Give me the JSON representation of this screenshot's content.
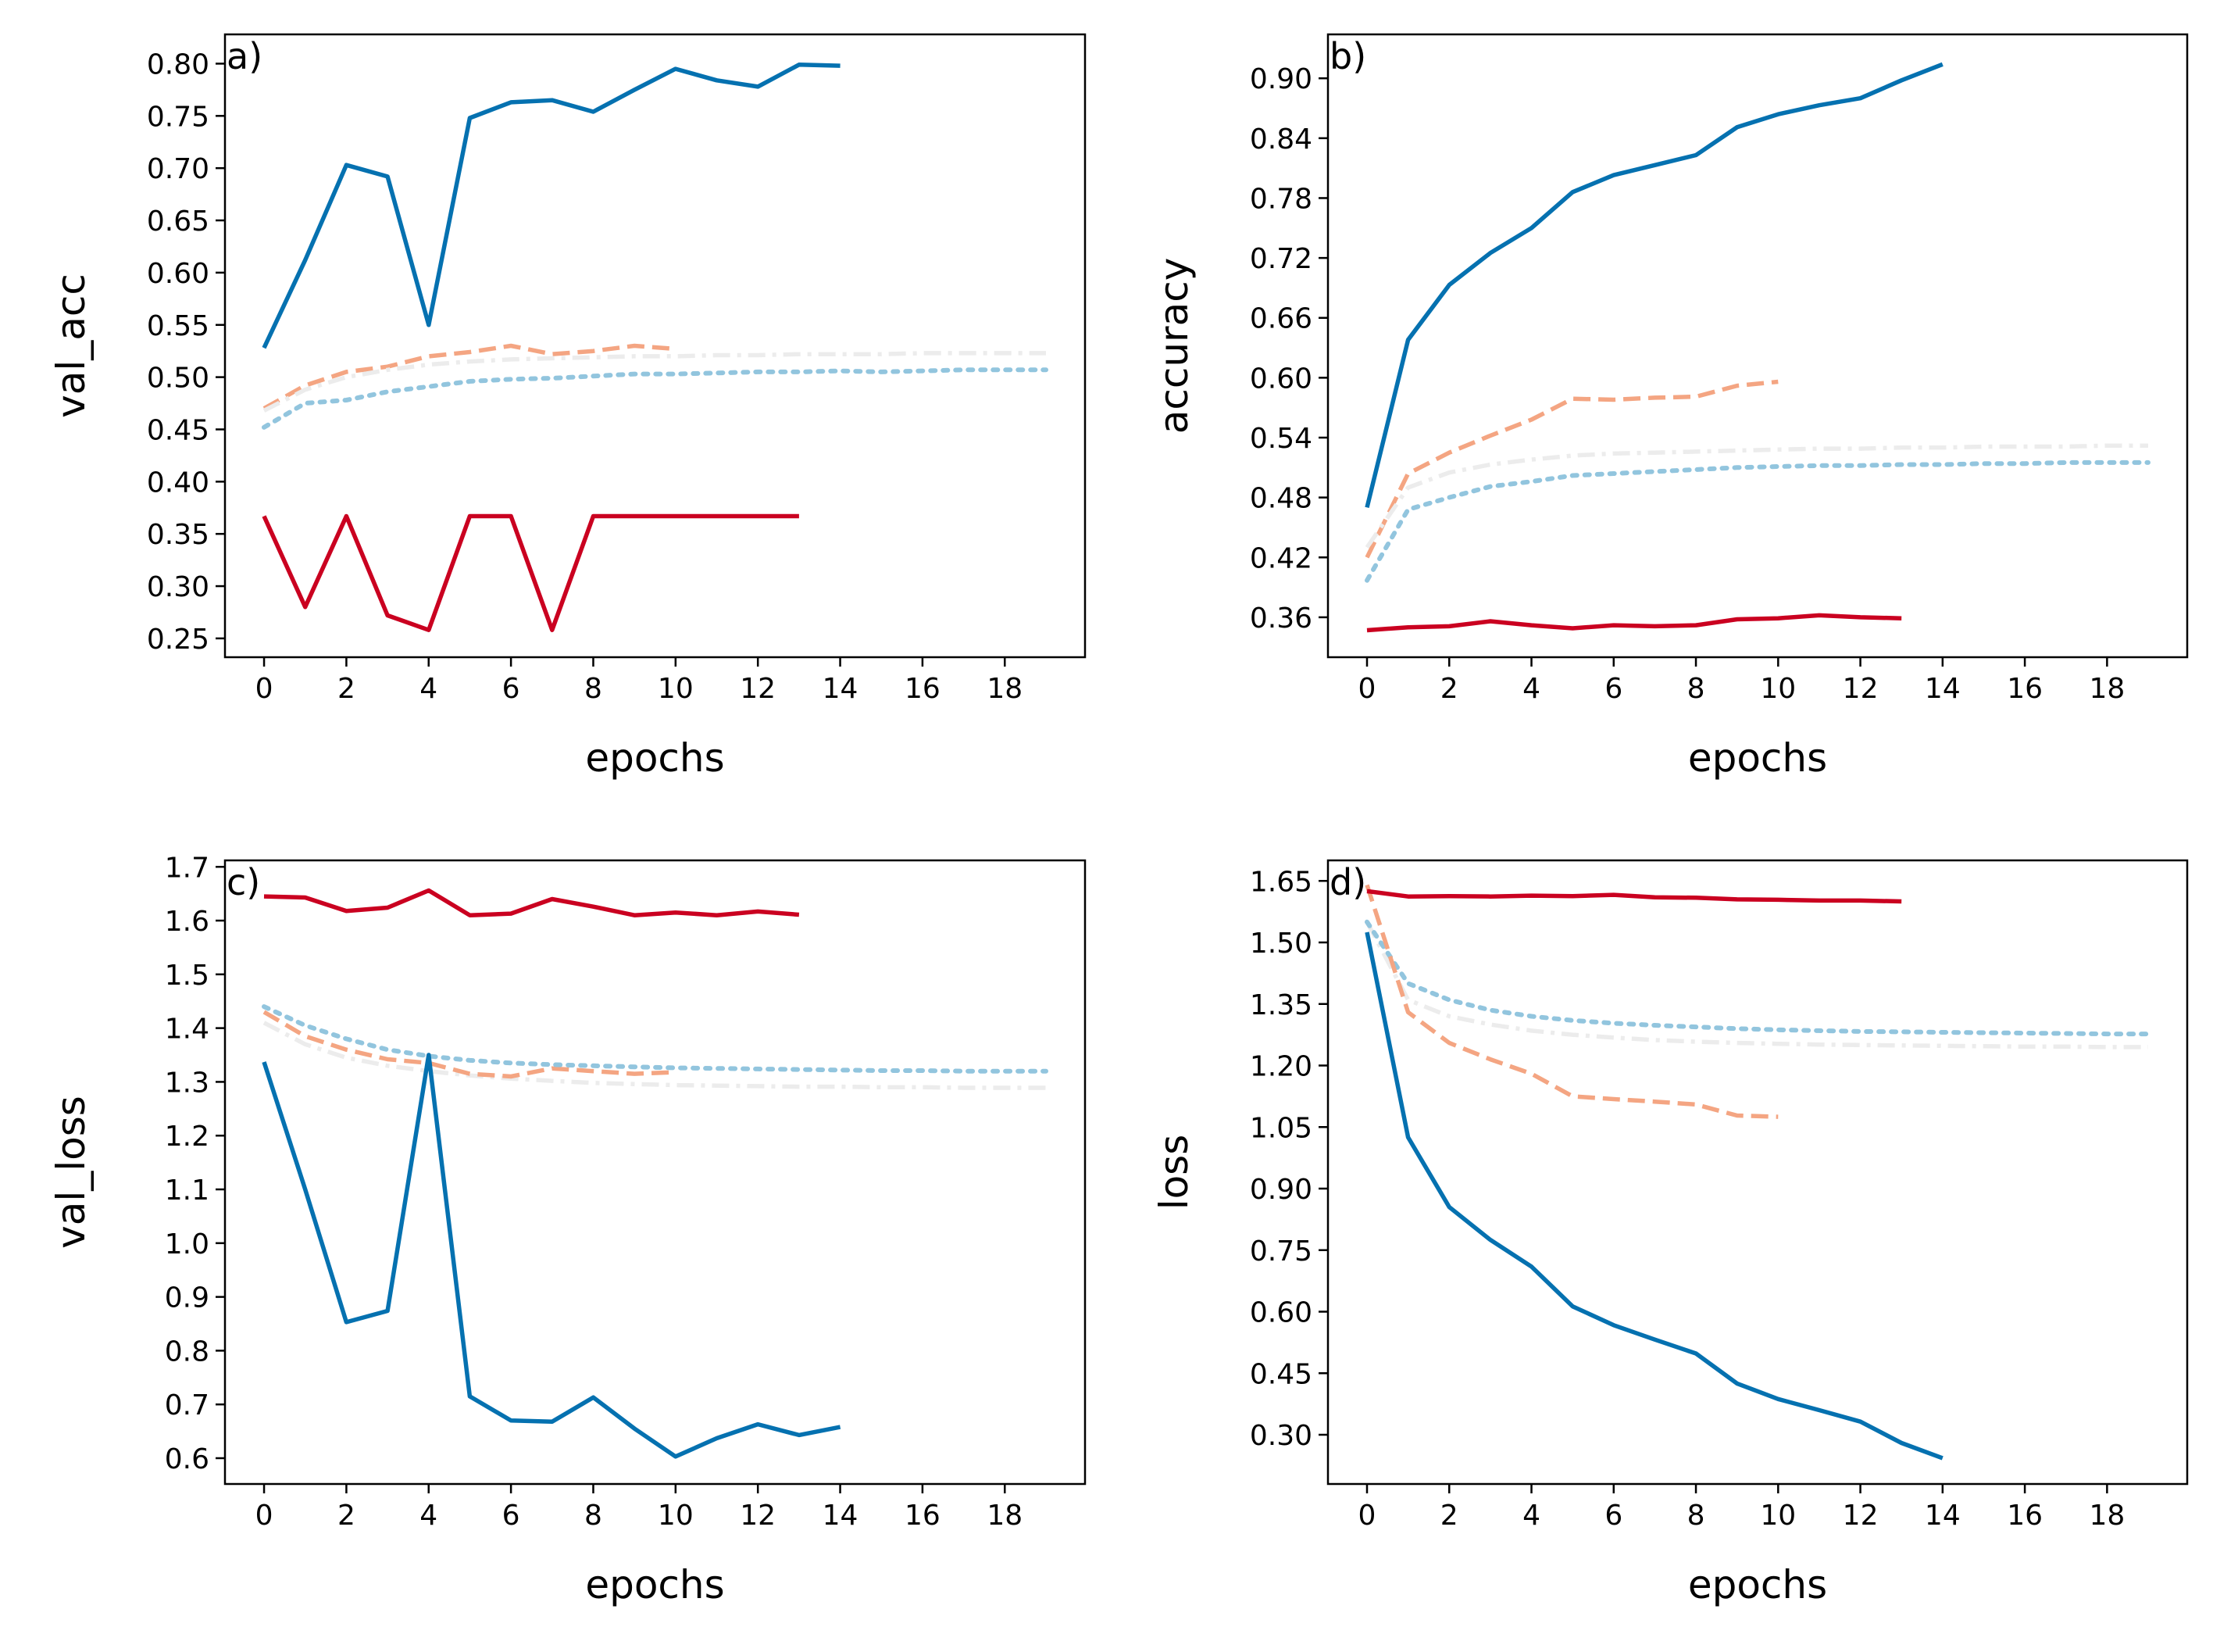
{
  "chart_data": [
    {
      "type": "line",
      "panel_label": "a)",
      "xlabel": "epochs",
      "ylabel": "val_acc",
      "xlim": [
        -0.95,
        19.95
      ],
      "ylim": [
        0.232,
        0.828
      ],
      "xticks": [
        0,
        2,
        4,
        6,
        8,
        10,
        12,
        14,
        16,
        18
      ],
      "yticks": [
        0.25,
        0.3,
        0.35,
        0.4,
        0.45,
        0.5,
        0.55,
        0.6,
        0.65,
        0.7,
        0.75,
        0.8
      ],
      "ytick_labels": [
        "0.25",
        "0.30",
        "0.35",
        "0.40",
        "0.45",
        "0.50",
        "0.55",
        "0.60",
        "0.65",
        "0.70",
        "0.75",
        "0.80"
      ],
      "grid": false,
      "series": [
        {
          "color": "#0571b0",
          "style": "solid",
          "width": 5.5,
          "x": [
            0,
            1,
            2,
            3,
            4,
            5,
            6,
            7,
            8,
            9,
            10,
            11,
            12,
            13,
            14
          ],
          "y": [
            0.528,
            0.612,
            0.703,
            0.692,
            0.55,
            0.748,
            0.763,
            0.765,
            0.754,
            0.775,
            0.795,
            0.784,
            0.778,
            0.799,
            0.798
          ]
        },
        {
          "color": "#f4a582",
          "style": "dashed",
          "width": 5.5,
          "x": [
            0,
            1,
            2,
            3,
            4,
            5,
            6,
            7,
            8,
            9,
            10
          ],
          "y": [
            0.47,
            0.492,
            0.505,
            0.51,
            0.52,
            0.524,
            0.53,
            0.522,
            0.525,
            0.53,
            0.527
          ]
        },
        {
          "color": "#ececec",
          "style": "dashdot",
          "width": 5.5,
          "x": [
            0,
            1,
            2,
            3,
            4,
            5,
            6,
            7,
            8,
            9,
            10,
            11,
            12,
            13,
            14,
            15,
            16,
            17,
            18,
            19
          ],
          "y": [
            0.468,
            0.488,
            0.5,
            0.507,
            0.512,
            0.515,
            0.517,
            0.518,
            0.519,
            0.52,
            0.52,
            0.521,
            0.521,
            0.522,
            0.522,
            0.522,
            0.523,
            0.523,
            0.523,
            0.523
          ]
        },
        {
          "color": "#92c5de",
          "style": "dotted",
          "width": 6,
          "x": [
            0,
            1,
            2,
            3,
            4,
            5,
            6,
            7,
            8,
            9,
            10,
            11,
            12,
            13,
            14,
            15,
            16,
            17,
            18,
            19
          ],
          "y": [
            0.452,
            0.475,
            0.478,
            0.486,
            0.491,
            0.496,
            0.498,
            0.499,
            0.501,
            0.503,
            0.503,
            0.504,
            0.505,
            0.505,
            0.506,
            0.505,
            0.506,
            0.507,
            0.507,
            0.507
          ]
        },
        {
          "color": "#ca0020",
          "style": "solid",
          "width": 5.5,
          "x": [
            0,
            1,
            2,
            3,
            4,
            5,
            6,
            7,
            8,
            9,
            10,
            11,
            12,
            13
          ],
          "y": [
            0.367,
            0.28,
            0.367,
            0.272,
            0.258,
            0.367,
            0.367,
            0.258,
            0.367,
            0.367,
            0.367,
            0.367,
            0.367,
            0.367
          ]
        }
      ]
    },
    {
      "type": "line",
      "panel_label": "b)",
      "xlabel": "epochs",
      "ylabel": "accuracy",
      "xlim": [
        -0.95,
        19.95
      ],
      "ylim": [
        0.32,
        0.944
      ],
      "xticks": [
        0,
        2,
        4,
        6,
        8,
        10,
        12,
        14,
        16,
        18
      ],
      "yticks": [
        0.36,
        0.42,
        0.48,
        0.54,
        0.6,
        0.66,
        0.72,
        0.78,
        0.84,
        0.9
      ],
      "ytick_labels": [
        "0.36",
        "0.42",
        "0.48",
        "0.54",
        "0.60",
        "0.66",
        "0.72",
        "0.78",
        "0.84",
        "0.90"
      ],
      "grid": false,
      "series": [
        {
          "color": "#0571b0",
          "style": "solid",
          "width": 5.5,
          "x": [
            0,
            1,
            2,
            3,
            4,
            5,
            6,
            7,
            8,
            9,
            10,
            11,
            12,
            13,
            14
          ],
          "y": [
            0.47,
            0.638,
            0.693,
            0.725,
            0.75,
            0.786,
            0.803,
            0.813,
            0.823,
            0.851,
            0.864,
            0.873,
            0.88,
            0.898,
            0.914
          ]
        },
        {
          "color": "#f4a582",
          "style": "dashed",
          "width": 5.5,
          "x": [
            0,
            1,
            2,
            3,
            4,
            5,
            6,
            7,
            8,
            9,
            10
          ],
          "y": [
            0.42,
            0.504,
            0.525,
            0.542,
            0.558,
            0.579,
            0.578,
            0.58,
            0.581,
            0.592,
            0.596
          ]
        },
        {
          "color": "#ececec",
          "style": "dashdot",
          "width": 5.5,
          "x": [
            0,
            1,
            2,
            3,
            4,
            5,
            6,
            7,
            8,
            9,
            10,
            11,
            12,
            13,
            14,
            15,
            16,
            17,
            18,
            19
          ],
          "y": [
            0.43,
            0.49,
            0.505,
            0.513,
            0.518,
            0.522,
            0.524,
            0.525,
            0.526,
            0.527,
            0.528,
            0.529,
            0.529,
            0.53,
            0.53,
            0.531,
            0.531,
            0.531,
            0.532,
            0.532
          ]
        },
        {
          "color": "#92c5de",
          "style": "dotted",
          "width": 6,
          "x": [
            0,
            1,
            2,
            3,
            4,
            5,
            6,
            7,
            8,
            9,
            10,
            11,
            12,
            13,
            14,
            15,
            16,
            17,
            18,
            19
          ],
          "y": [
            0.397,
            0.468,
            0.48,
            0.491,
            0.496,
            0.502,
            0.504,
            0.506,
            0.508,
            0.51,
            0.511,
            0.512,
            0.512,
            0.513,
            0.513,
            0.514,
            0.514,
            0.515,
            0.515,
            0.515
          ]
        },
        {
          "color": "#ca0020",
          "style": "solid",
          "width": 5.5,
          "x": [
            0,
            1,
            2,
            3,
            4,
            5,
            6,
            7,
            8,
            9,
            10,
            11,
            12,
            13
          ],
          "y": [
            0.347,
            0.35,
            0.351,
            0.356,
            0.352,
            0.349,
            0.352,
            0.351,
            0.352,
            0.358,
            0.359,
            0.362,
            0.36,
            0.359
          ]
        }
      ]
    },
    {
      "type": "line",
      "panel_label": "c)",
      "xlabel": "epochs",
      "ylabel": "val_loss",
      "xlim": [
        -0.95,
        19.95
      ],
      "ylim": [
        0.552,
        1.712
      ],
      "xticks": [
        0,
        2,
        4,
        6,
        8,
        10,
        12,
        14,
        16,
        18
      ],
      "yticks": [
        0.6,
        0.7,
        0.8,
        0.9,
        1.0,
        1.1,
        1.2,
        1.3,
        1.4,
        1.5,
        1.6,
        1.7
      ],
      "ytick_labels": [
        "0.6",
        "0.7",
        "0.8",
        "0.9",
        "1.0",
        "1.1",
        "1.2",
        "1.3",
        "1.4",
        "1.5",
        "1.6",
        "1.7"
      ],
      "grid": false,
      "series": [
        {
          "color": "#ececec",
          "style": "dashdot",
          "width": 5.5,
          "x": [
            0,
            1,
            2,
            3,
            4,
            5,
            6,
            7,
            8,
            9,
            10,
            11,
            12,
            13,
            14,
            15,
            16,
            17,
            18,
            19
          ],
          "y": [
            1.41,
            1.37,
            1.345,
            1.33,
            1.32,
            1.312,
            1.306,
            1.302,
            1.298,
            1.296,
            1.294,
            1.293,
            1.292,
            1.291,
            1.291,
            1.29,
            1.29,
            1.289,
            1.289,
            1.289
          ]
        },
        {
          "color": "#f4a582",
          "style": "dashed",
          "width": 5.5,
          "x": [
            0,
            1,
            2,
            3,
            4,
            5,
            6,
            7,
            8,
            9,
            10
          ],
          "y": [
            1.43,
            1.385,
            1.36,
            1.342,
            1.335,
            1.315,
            1.31,
            1.325,
            1.32,
            1.315,
            1.318
          ]
        },
        {
          "color": "#92c5de",
          "style": "dotted",
          "width": 6,
          "x": [
            0,
            1,
            2,
            3,
            4,
            5,
            6,
            7,
            8,
            9,
            10,
            11,
            12,
            13,
            14,
            15,
            16,
            17,
            18,
            19
          ],
          "y": [
            1.44,
            1.405,
            1.38,
            1.36,
            1.348,
            1.34,
            1.335,
            1.332,
            1.33,
            1.328,
            1.326,
            1.325,
            1.324,
            1.323,
            1.322,
            1.321,
            1.321,
            1.32,
            1.32,
            1.32
          ]
        },
        {
          "color": "#0571b0",
          "style": "solid",
          "width": 5.5,
          "x": [
            0,
            1,
            2,
            3,
            4,
            5,
            6,
            7,
            8,
            9,
            10,
            11,
            12,
            13,
            14
          ],
          "y": [
            1.337,
            1.1,
            0.853,
            0.874,
            1.35,
            0.715,
            0.67,
            0.668,
            0.713,
            0.655,
            0.603,
            0.637,
            0.663,
            0.643,
            0.658
          ]
        },
        {
          "color": "#ca0020",
          "style": "solid",
          "width": 5.5,
          "x": [
            0,
            1,
            2,
            3,
            4,
            5,
            6,
            7,
            8,
            9,
            10,
            11,
            12,
            13
          ],
          "y": [
            1.645,
            1.643,
            1.618,
            1.624,
            1.656,
            1.61,
            1.613,
            1.64,
            1.626,
            1.61,
            1.615,
            1.61,
            1.617,
            1.611
          ]
        }
      ]
    },
    {
      "type": "line",
      "panel_label": "d)",
      "xlabel": "epochs",
      "ylabel": "loss",
      "xlim": [
        -0.95,
        19.95
      ],
      "ylim": [
        0.18,
        1.7
      ],
      "xticks": [
        0,
        2,
        4,
        6,
        8,
        10,
        12,
        14,
        16,
        18
      ],
      "yticks": [
        0.3,
        0.45,
        0.6,
        0.75,
        0.9,
        1.05,
        1.2,
        1.35,
        1.5,
        1.65
      ],
      "ytick_labels": [
        "0.30",
        "0.45",
        "0.60",
        "0.75",
        "0.90",
        "1.05",
        "1.20",
        "1.35",
        "1.50",
        "1.65"
      ],
      "grid": false,
      "series": [
        {
          "color": "#ececec",
          "style": "dashdot",
          "width": 5.5,
          "x": [
            0,
            1,
            2,
            3,
            4,
            5,
            6,
            7,
            8,
            9,
            10,
            11,
            12,
            13,
            14,
            15,
            16,
            17,
            18,
            19
          ],
          "y": [
            1.55,
            1.36,
            1.32,
            1.3,
            1.285,
            1.275,
            1.268,
            1.262,
            1.258,
            1.255,
            1.253,
            1.251,
            1.25,
            1.249,
            1.248,
            1.247,
            1.246,
            1.246,
            1.245,
            1.245
          ]
        },
        {
          "color": "#92c5de",
          "style": "dotted",
          "width": 6,
          "x": [
            0,
            1,
            2,
            3,
            4,
            5,
            6,
            7,
            8,
            9,
            10,
            11,
            12,
            13,
            14,
            15,
            16,
            17,
            18,
            19
          ],
          "y": [
            1.55,
            1.4,
            1.36,
            1.335,
            1.32,
            1.31,
            1.303,
            1.298,
            1.294,
            1.29,
            1.287,
            1.285,
            1.283,
            1.282,
            1.281,
            1.28,
            1.279,
            1.278,
            1.277,
            1.277
          ]
        },
        {
          "color": "#f4a582",
          "style": "dashed",
          "width": 5.5,
          "x": [
            0,
            1,
            2,
            3,
            4,
            5,
            6,
            7,
            8,
            9,
            10
          ],
          "y": [
            1.64,
            1.33,
            1.255,
            1.215,
            1.18,
            1.125,
            1.118,
            1.112,
            1.105,
            1.078,
            1.075
          ]
        },
        {
          "color": "#0571b0",
          "style": "solid",
          "width": 5.5,
          "x": [
            0,
            1,
            2,
            3,
            4,
            5,
            6,
            7,
            8,
            9,
            10,
            11,
            12,
            13,
            14
          ],
          "y": [
            1.525,
            1.025,
            0.855,
            0.775,
            0.71,
            0.613,
            0.567,
            0.532,
            0.498,
            0.425,
            0.387,
            0.36,
            0.332,
            0.28,
            0.243
          ]
        },
        {
          "color": "#ca0020",
          "style": "solid",
          "width": 5.5,
          "x": [
            0,
            1,
            2,
            3,
            4,
            5,
            6,
            7,
            8,
            9,
            10,
            11,
            12,
            13
          ],
          "y": [
            1.625,
            1.612,
            1.613,
            1.612,
            1.614,
            1.613,
            1.616,
            1.61,
            1.609,
            1.605,
            1.604,
            1.602,
            1.602,
            1.6
          ]
        }
      ]
    }
  ]
}
